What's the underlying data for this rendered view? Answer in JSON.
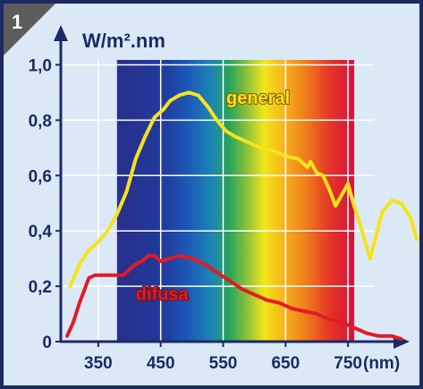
{
  "badge": {
    "number": "1"
  },
  "colors": {
    "frame": "#1c2a63",
    "panel": "#dbe9f7",
    "badge_bg": "#5c5c5c",
    "general": "#f5e31c",
    "difusa": "#e21b25",
    "grid": "#ffffff"
  },
  "chart_data": {
    "type": "line",
    "ylabel": "W/m².nm",
    "xlabel": "(nm)",
    "xlim": [
      290,
      820
    ],
    "ylim": [
      0,
      1.05
    ],
    "grid": true,
    "xticks": [
      {
        "value": 350,
        "label": "350"
      },
      {
        "value": 450,
        "label": "450"
      },
      {
        "value": 550,
        "label": "550"
      },
      {
        "value": 650,
        "label": "650"
      },
      {
        "value": 750,
        "label": "750"
      }
    ],
    "yticks": [
      {
        "value": 0,
        "label": "0"
      },
      {
        "value": 0.2,
        "label": "0,2"
      },
      {
        "value": 0.4,
        "label": "0,4"
      },
      {
        "value": 0.6,
        "label": "0,6"
      },
      {
        "value": 0.8,
        "label": "0,8"
      },
      {
        "value": 1.0,
        "label": "1,0"
      }
    ],
    "visible_spectrum": [
      380,
      760
    ],
    "series": [
      {
        "name": "general",
        "color": "#f5e31c",
        "label_at": [
          555,
          0.86
        ],
        "points": [
          [
            305,
            0.2
          ],
          [
            320,
            0.28
          ],
          [
            335,
            0.33
          ],
          [
            350,
            0.36
          ],
          [
            365,
            0.4
          ],
          [
            380,
            0.46
          ],
          [
            395,
            0.54
          ],
          [
            410,
            0.66
          ],
          [
            425,
            0.74
          ],
          [
            440,
            0.81
          ],
          [
            455,
            0.84
          ],
          [
            465,
            0.87
          ],
          [
            480,
            0.89
          ],
          [
            495,
            0.9
          ],
          [
            510,
            0.89
          ],
          [
            525,
            0.85
          ],
          [
            540,
            0.8
          ],
          [
            555,
            0.76
          ],
          [
            570,
            0.74
          ],
          [
            590,
            0.72
          ],
          [
            610,
            0.7
          ],
          [
            630,
            0.69
          ],
          [
            650,
            0.67
          ],
          [
            670,
            0.66
          ],
          [
            685,
            0.63
          ],
          [
            690,
            0.65
          ],
          [
            700,
            0.61
          ],
          [
            710,
            0.6
          ],
          [
            720,
            0.55
          ],
          [
            730,
            0.49
          ],
          [
            740,
            0.53
          ],
          [
            750,
            0.57
          ],
          [
            760,
            0.49
          ],
          [
            770,
            0.42
          ],
          [
            780,
            0.34
          ],
          [
            785,
            0.3
          ],
          [
            795,
            0.38
          ],
          [
            805,
            0.47
          ],
          [
            820,
            0.51
          ],
          [
            835,
            0.5
          ],
          [
            850,
            0.45
          ],
          [
            860,
            0.37
          ]
        ]
      },
      {
        "name": "difusa",
        "color": "#e21b25",
        "label_at": [
          410,
          0.15
        ],
        "points": [
          [
            300,
            0.02
          ],
          [
            310,
            0.07
          ],
          [
            320,
            0.14
          ],
          [
            325,
            0.17
          ],
          [
            335,
            0.23
          ],
          [
            345,
            0.24
          ],
          [
            355,
            0.24
          ],
          [
            370,
            0.24
          ],
          [
            390,
            0.24
          ],
          [
            400,
            0.26
          ],
          [
            410,
            0.28
          ],
          [
            420,
            0.29
          ],
          [
            430,
            0.31
          ],
          [
            440,
            0.31
          ],
          [
            450,
            0.29
          ],
          [
            465,
            0.3
          ],
          [
            480,
            0.31
          ],
          [
            500,
            0.3
          ],
          [
            520,
            0.28
          ],
          [
            540,
            0.25
          ],
          [
            560,
            0.22
          ],
          [
            580,
            0.19
          ],
          [
            600,
            0.17
          ],
          [
            620,
            0.15
          ],
          [
            640,
            0.14
          ],
          [
            660,
            0.12
          ],
          [
            680,
            0.11
          ],
          [
            700,
            0.1
          ],
          [
            720,
            0.08
          ],
          [
            740,
            0.07
          ],
          [
            760,
            0.05
          ],
          [
            780,
            0.03
          ],
          [
            800,
            0.02
          ],
          [
            820,
            0.02
          ],
          [
            835,
            0.01
          ]
        ]
      }
    ]
  }
}
